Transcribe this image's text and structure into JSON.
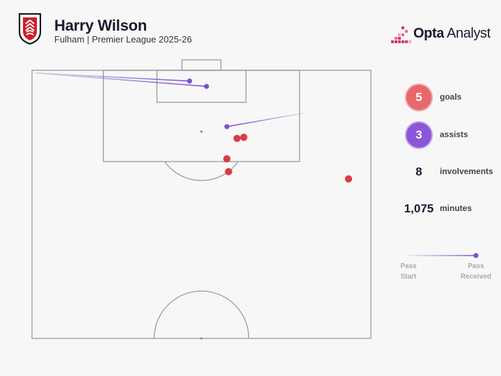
{
  "header": {
    "player_name": "Harry Wilson",
    "subtitle": "Fulham | Premier League 2025-26",
    "brand_bold": "Opta",
    "brand_light": "Analyst"
  },
  "stats": {
    "goals_value": "5",
    "goals_label": "goals",
    "assists_value": "3",
    "assists_label": "assists",
    "involvements_value": "8",
    "involvements_label": "involvements",
    "minutes_value": "1,075",
    "minutes_label": "minutes"
  },
  "legend": {
    "start_line1": "Pass",
    "start_line2": "Start",
    "end_line1": "Pass",
    "end_line2": "Received"
  },
  "colors": {
    "goal": "#dc3c45",
    "assist": "#7b4fd0",
    "pitch_line": "#9a9a9a",
    "background": "#f7f7f7"
  },
  "chart_data": {
    "type": "scatter",
    "coordinate_system": "half-pitch, x across width 0-100 (left to right), y distance from goal line 0-100",
    "goals": [
      {
        "x": 60.5,
        "y": 25.4
      },
      {
        "x": 62.5,
        "y": 25.0
      },
      {
        "x": 57.5,
        "y": 33.0
      },
      {
        "x": 58.0,
        "y": 37.8
      },
      {
        "x": 93.4,
        "y": 40.5
      }
    ],
    "assists": [
      {
        "start_x": 1.0,
        "start_y": 1.0,
        "end_x": 46.5,
        "end_y": 4.0
      },
      {
        "start_x": 1.0,
        "start_y": 1.0,
        "end_x": 51.5,
        "end_y": 6.0
      },
      {
        "start_x": 80.0,
        "start_y": 16.0,
        "end_x": 57.5,
        "end_y": 21.0
      }
    ]
  }
}
